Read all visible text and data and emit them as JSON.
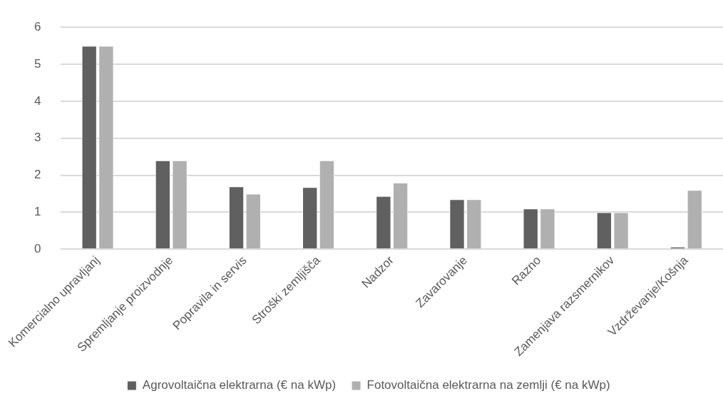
{
  "chart_data": {
    "type": "bar",
    "categories": [
      "Komercialno upravljanj",
      "Spremljanje proizvodnje",
      "Popravila in servis",
      "Stroški zemljišča",
      "Nadzor",
      "Zavarovanje",
      "Razno",
      "Zamenjava razsmernikov",
      "Vzdrževanje/Košnja"
    ],
    "series": [
      {
        "name": "Agrovoltaična elektrarna (€ na kWp)",
        "color": "#606060",
        "values": [
          5.5,
          2.4,
          1.7,
          1.68,
          1.44,
          1.35,
          1.1,
          1.0,
          0.07
        ]
      },
      {
        "name": "Fotovoltaična elektrarna na zemlji (€ na kWp)",
        "color": "#b0b0b0",
        "values": [
          5.5,
          2.4,
          1.5,
          2.4,
          1.8,
          1.35,
          1.1,
          1.0,
          1.6
        ]
      }
    ],
    "ylim": [
      0,
      6
    ],
    "yticks": [
      0,
      1,
      2,
      3,
      4,
      5,
      6
    ],
    "grid": "y",
    "legend": "bottom"
  }
}
